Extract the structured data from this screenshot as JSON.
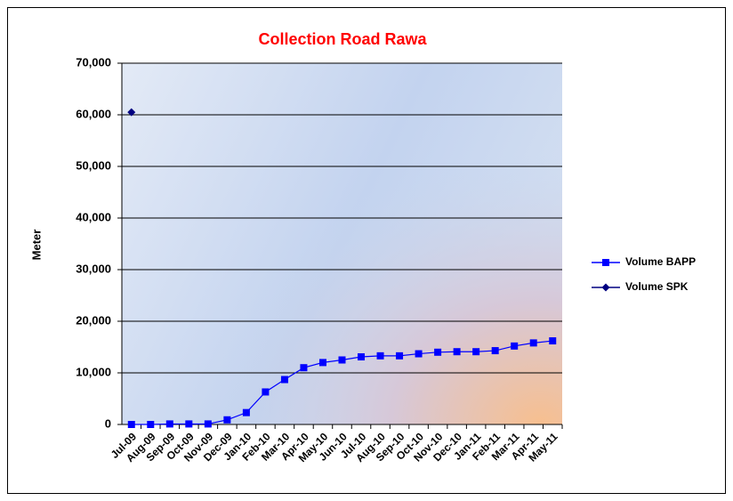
{
  "chart_data": {
    "type": "line",
    "title": "Collection Road Rawa",
    "y_label": "Meter",
    "categories": [
      "Jul-09",
      "Aug-09",
      "Sep-09",
      "Oct-09",
      "Nov-09",
      "Dec-09",
      "Jan-10",
      "Feb-10",
      "Mar-10",
      "Apr-10",
      "May-10",
      "Jun-10",
      "Jul-10",
      "Aug-10",
      "Sep-10",
      "Oct-10",
      "Nov-10",
      "Dec-10",
      "Jan-11",
      "Feb-11",
      "Mar-11",
      "Apr-11",
      "May-11"
    ],
    "series": [
      {
        "name": "Volume BAPP",
        "color": "#0000ff",
        "marker": "square",
        "values": [
          0,
          0,
          100,
          100,
          100,
          900,
          2300,
          6300,
          8700,
          11000,
          12000,
          12500,
          13100,
          13300,
          13300,
          13700,
          14000,
          14100,
          14100,
          14300,
          15200,
          15800,
          16200
        ]
      },
      {
        "name": "Volume SPK",
        "color": "#000080",
        "marker": "diamond",
        "values": [
          60500,
          null,
          null,
          null,
          null,
          null,
          null,
          null,
          null,
          null,
          null,
          null,
          null,
          null,
          null,
          null,
          null,
          null,
          null,
          null,
          null,
          null,
          null
        ]
      }
    ],
    "ylim": [
      0,
      70000
    ],
    "yticks": [
      0,
      {
        "value": 10000,
        "label": "10,000"
      },
      {
        "value": 20000,
        "label": "20,000"
      },
      {
        "value": 30000,
        "label": "30,000"
      },
      {
        "value": 40000,
        "label": "40,000"
      },
      {
        "value": 50000,
        "label": "50,000"
      },
      {
        "value": 60000,
        "label": "60,000"
      },
      {
        "value": 70000,
        "label": "70,000"
      }
    ],
    "grid": true,
    "legend": "right"
  }
}
